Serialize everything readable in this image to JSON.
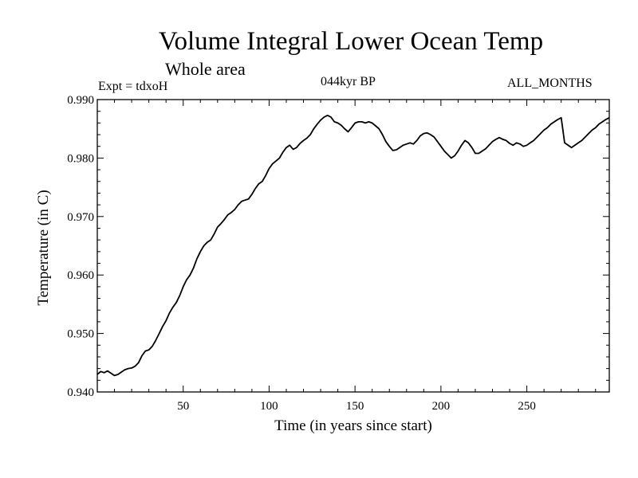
{
  "header": {
    "title": "Volume Integral Lower Ocean Temp",
    "subtitle": "Whole area",
    "experiment": "Expt = tdxoH",
    "period": "044kyr BP",
    "months": "ALL_MONTHS"
  },
  "chart_data": {
    "type": "line",
    "title": "Volume Integral Lower Ocean Temp",
    "xlabel": "Time (in years since start)",
    "ylabel": "Temperature (in C)",
    "xlim": [
      0,
      298
    ],
    "ylim": [
      0.94,
      0.99
    ],
    "x_ticks": [
      50,
      100,
      150,
      200,
      250
    ],
    "y_ticks": [
      0.94,
      0.95,
      0.96,
      0.97,
      0.98,
      0.99
    ],
    "y_tick_labels": [
      "0.940",
      "0.950",
      "0.960",
      "0.970",
      "0.980",
      "0.990"
    ],
    "grid": false,
    "legend": "none",
    "line_color": "#000000",
    "series": [
      {
        "x": [
          0,
          2,
          4,
          6,
          8,
          10,
          12,
          14,
          16,
          18,
          20,
          22,
          24,
          26,
          28,
          30,
          32,
          34,
          36,
          38,
          40,
          42,
          44,
          46,
          48,
          50,
          52,
          54,
          56,
          58,
          60,
          62,
          64,
          66,
          68,
          70,
          72,
          74,
          76,
          78,
          80,
          82,
          84,
          86,
          88,
          90,
          92,
          94,
          96,
          98,
          100,
          102,
          104,
          106,
          108,
          110,
          112,
          114,
          116,
          118,
          120,
          122,
          124,
          126,
          128,
          130,
          132,
          134,
          136,
          138,
          140,
          142,
          144,
          146,
          148,
          150,
          152,
          154,
          156,
          158,
          160,
          162,
          164,
          166,
          168,
          170,
          172,
          174,
          176,
          178,
          180,
          182,
          184,
          186,
          188,
          190,
          192,
          194,
          196,
          198,
          200,
          202,
          204,
          206,
          208,
          210,
          212,
          214,
          216,
          218,
          220,
          222,
          224,
          226,
          228,
          230,
          232,
          234,
          236,
          238,
          240,
          242,
          244,
          246,
          248,
          250,
          252,
          254,
          256,
          258,
          260,
          262,
          264,
          266,
          268,
          270,
          272,
          274,
          276,
          278,
          280,
          282,
          284,
          286,
          288,
          290,
          292,
          294,
          296,
          298
        ],
        "values": [
          0.943,
          0.9435,
          0.9433,
          0.9436,
          0.9432,
          0.9428,
          0.943,
          0.9434,
          0.9438,
          0.944,
          0.9441,
          0.9444,
          0.945,
          0.9462,
          0.947,
          0.9472,
          0.9478,
          0.9488,
          0.95,
          0.9512,
          0.9522,
          0.9535,
          0.9545,
          0.9553,
          0.9565,
          0.958,
          0.9592,
          0.96,
          0.9612,
          0.9628,
          0.964,
          0.965,
          0.9656,
          0.966,
          0.967,
          0.9682,
          0.9688,
          0.9695,
          0.9703,
          0.9707,
          0.9712,
          0.972,
          0.9726,
          0.9728,
          0.973,
          0.9738,
          0.9748,
          0.9756,
          0.976,
          0.977,
          0.9782,
          0.979,
          0.9795,
          0.98,
          0.981,
          0.9818,
          0.9822,
          0.9815,
          0.9818,
          0.9825,
          0.983,
          0.9834,
          0.984,
          0.985,
          0.9858,
          0.9865,
          0.987,
          0.9873,
          0.987,
          0.9862,
          0.986,
          0.9856,
          0.985,
          0.9845,
          0.9852,
          0.986,
          0.9862,
          0.9862,
          0.986,
          0.9862,
          0.986,
          0.9855,
          0.985,
          0.984,
          0.9828,
          0.982,
          0.9813,
          0.9814,
          0.9818,
          0.9822,
          0.9824,
          0.9826,
          0.9824,
          0.983,
          0.9838,
          0.9842,
          0.9843,
          0.984,
          0.9836,
          0.9828,
          0.982,
          0.9812,
          0.9806,
          0.98,
          0.9804,
          0.9812,
          0.9822,
          0.983,
          0.9826,
          0.9818,
          0.9808,
          0.9808,
          0.9812,
          0.9816,
          0.9822,
          0.9828,
          0.9832,
          0.9835,
          0.9832,
          0.983,
          0.9825,
          0.9822,
          0.9826,
          0.9824,
          0.982,
          0.9822,
          0.9826,
          0.983,
          0.9836,
          0.9842,
          0.9848,
          0.9852,
          0.9858,
          0.9862,
          0.9866,
          0.9869,
          0.9826,
          0.9822,
          0.9818,
          0.9822,
          0.9826,
          0.983,
          0.9836,
          0.9842,
          0.9848,
          0.9852,
          0.9858,
          0.9862,
          0.9866,
          0.9869
        ]
      }
    ]
  }
}
